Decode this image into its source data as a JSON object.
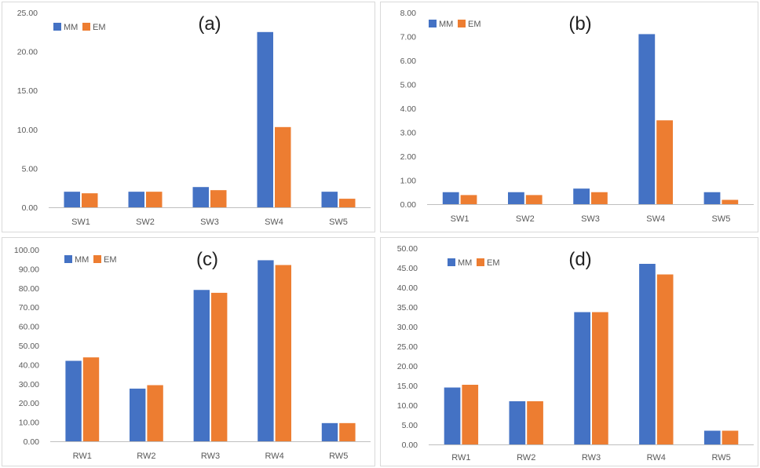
{
  "colors": {
    "series1": "#4472C4",
    "series2": "#ED7D31",
    "frame": "#d9d9d9",
    "axis": "#bfbfbf",
    "text": "#595959",
    "panel_label": "#222222"
  },
  "chart_data": [
    {
      "panel": "(a)",
      "type": "bar",
      "categories": [
        "SW1",
        "SW2",
        "SW3",
        "SW4",
        "SW5"
      ],
      "series": [
        {
          "name": "MM",
          "values": [
            2.0,
            2.0,
            2.6,
            22.5,
            2.0
          ]
        },
        {
          "name": "EM",
          "values": [
            1.8,
            2.0,
            2.2,
            10.3,
            1.1
          ]
        }
      ],
      "yticks": [
        "0.00",
        "5.00",
        "10.00",
        "15.00",
        "20.00",
        "25.00"
      ],
      "ylim": [
        0,
        25
      ],
      "legend": "top-left",
      "grid": false
    },
    {
      "panel": "(b)",
      "type": "bar",
      "categories": [
        "SW1",
        "SW2",
        "SW3",
        "SW4",
        "SW5"
      ],
      "series": [
        {
          "name": "MM",
          "values": [
            0.5,
            0.5,
            0.65,
            7.1,
            0.5
          ]
        },
        {
          "name": "EM",
          "values": [
            0.38,
            0.38,
            0.5,
            3.5,
            0.18
          ]
        }
      ],
      "yticks": [
        "0.00",
        "1.00",
        "2.00",
        "3.00",
        "4.00",
        "5.00",
        "6.00",
        "7.00",
        "8.00"
      ],
      "ylim": [
        0,
        8
      ],
      "legend": "top-left",
      "grid": false
    },
    {
      "panel": "(c)",
      "type": "bar",
      "categories": [
        "RW1",
        "RW2",
        "RW3",
        "RW4",
        "RW5"
      ],
      "series": [
        {
          "name": "MM",
          "values": [
            42.0,
            27.5,
            79.0,
            94.5,
            9.5
          ]
        },
        {
          "name": "EM",
          "values": [
            43.8,
            29.3,
            77.5,
            92.0,
            9.5
          ]
        }
      ],
      "yticks": [
        "0.00",
        "10.00",
        "20.00",
        "30.00",
        "40.00",
        "50.00",
        "60.00",
        "70.00",
        "80.00",
        "90.00",
        "100.00"
      ],
      "ylim": [
        0,
        100
      ],
      "legend": "top-left",
      "grid": false
    },
    {
      "panel": "(d)",
      "type": "bar",
      "categories": [
        "RW1",
        "RW2",
        "RW3",
        "RW4",
        "RW5"
      ],
      "series": [
        {
          "name": "MM",
          "values": [
            14.5,
            11.0,
            33.7,
            46.0,
            3.5
          ]
        },
        {
          "name": "EM",
          "values": [
            15.2,
            11.0,
            33.7,
            43.3,
            3.5
          ]
        }
      ],
      "yticks": [
        "0.00",
        "5.00",
        "10.00",
        "15.00",
        "20.00",
        "25.00",
        "30.00",
        "35.00",
        "40.00",
        "45.00",
        "50.00"
      ],
      "ylim": [
        0,
        50
      ],
      "legend": "top-left",
      "grid": false
    }
  ]
}
